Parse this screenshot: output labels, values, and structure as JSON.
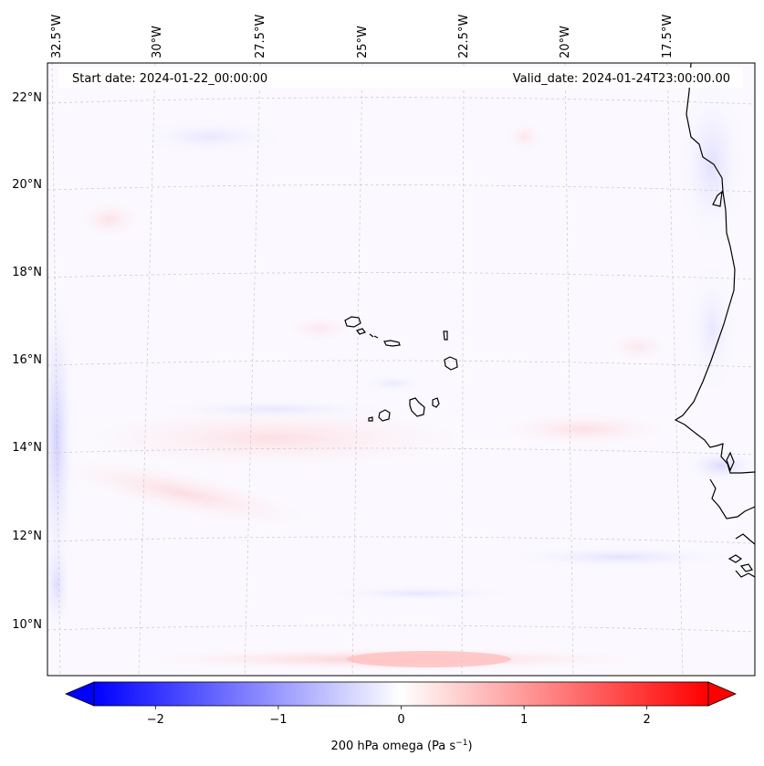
{
  "map": {
    "start_date_text": "Start date: 2024-01-22_00:00:00",
    "valid_date_text": "Valid_date: 2024-01-24T23:00:00.00",
    "lon_labels": [
      "32.5°W",
      "30°W",
      "27.5°W",
      "25°W",
      "22.5°W",
      "20°W",
      "17.5°W"
    ],
    "lat_labels": [
      "22°N",
      "20°N",
      "18°N",
      "16°N",
      "14°N",
      "12°N",
      "10°N"
    ],
    "lon_range_deg": [
      -32.8,
      -15.5
    ],
    "lat_range_deg": [
      8.8,
      22.7
    ]
  },
  "colorbar": {
    "label": "200 hPa omega (Pa s",
    "label_sup": "−1",
    "label_end": ")",
    "tick_labels": [
      "−2",
      "−1",
      "0",
      "1",
      "2"
    ],
    "ticks": [
      -2,
      -1,
      0,
      1,
      2
    ],
    "range": [
      -2.5,
      2.5
    ],
    "extend": "both",
    "cmap": "bwr",
    "colors": {
      "low": "#0000ff",
      "mid": "#ffffff",
      "high": "#ff0000"
    }
  },
  "colors": {
    "coastline": "#000000",
    "gridline": "#c8c8c8",
    "frame": "#000000"
  }
}
